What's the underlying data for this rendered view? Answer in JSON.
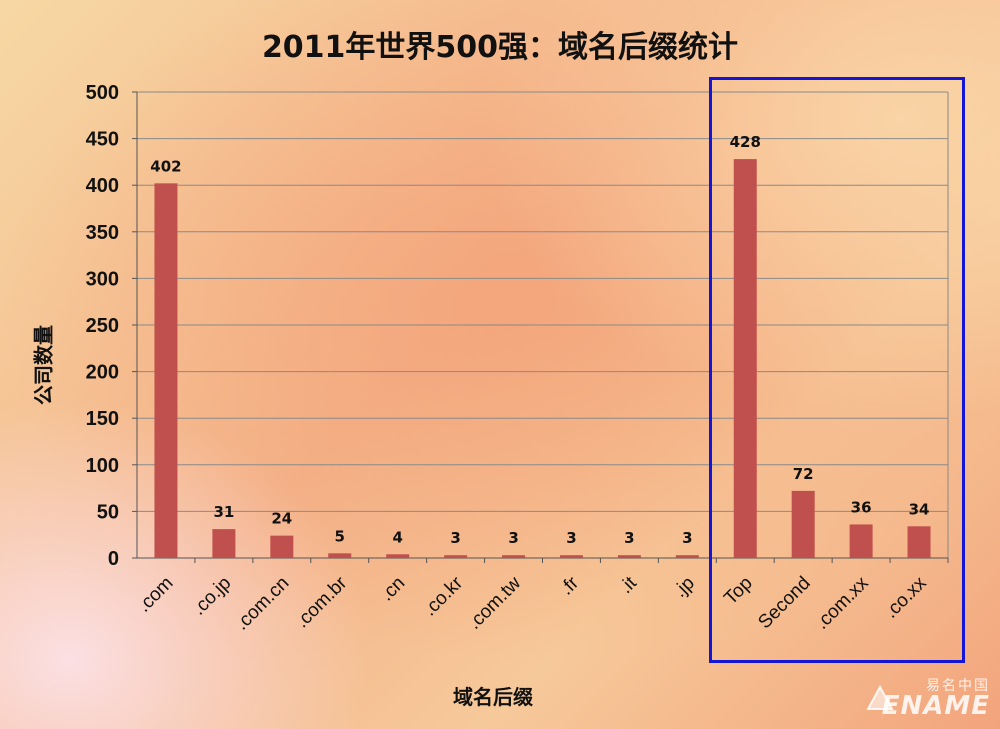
{
  "chart_data": {
    "type": "bar",
    "title": "2011年世界500强：域名后缀统计",
    "xlabel": "域名后缀",
    "ylabel": "公司数量",
    "categories": [
      ".com",
      ".co.jp",
      ".com.cn",
      ".com.br",
      ".cn",
      ".co.kr",
      ".com.tw",
      ".fr",
      ".it",
      ".jp",
      "Top",
      "Second",
      ".com.xx",
      ".co.xx"
    ],
    "values": [
      402,
      31,
      24,
      5,
      4,
      3,
      3,
      3,
      3,
      3,
      428,
      72,
      36,
      34
    ],
    "ylim": [
      0,
      500
    ],
    "yticks": [
      0,
      50,
      100,
      150,
      200,
      250,
      300,
      350,
      400,
      450,
      500
    ],
    "grid": true,
    "bar_color": "#c0504d",
    "highlight_box_color": "#1515d6",
    "highlighted_categories": [
      "Top",
      "Second",
      ".com.xx",
      ".co.xx"
    ]
  },
  "watermark": {
    "chinese": "易名中国",
    "english": "ENAME"
  }
}
